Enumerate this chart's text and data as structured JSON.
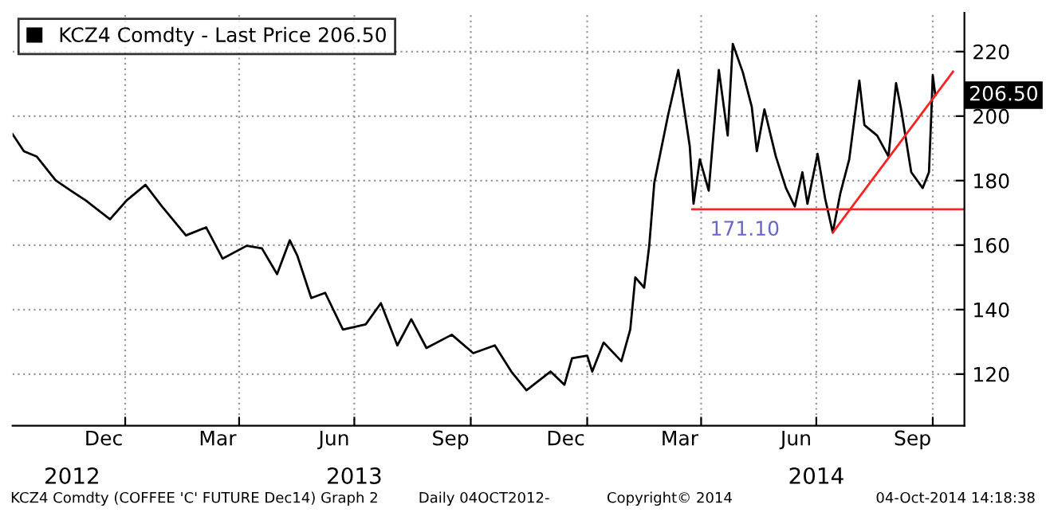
{
  "chart_data": {
    "type": "line",
    "series": [
      {
        "name": "KCZ4 Comdty - Last Price 206.50",
        "color": "#000000",
        "x": [
          "2012-10-04",
          "2012-10-13",
          "2012-10-23",
          "2012-11-07",
          "2012-11-19",
          "2012-12-01",
          "2012-12-20",
          "2013-01-02",
          "2013-01-17",
          "2013-01-30",
          "2013-02-18",
          "2013-03-06",
          "2013-03-19",
          "2013-04-07",
          "2013-04-19",
          "2013-05-01",
          "2013-05-11",
          "2013-05-17",
          "2013-05-28",
          "2013-06-08",
          "2013-06-22",
          "2013-07-10",
          "2013-07-22",
          "2013-08-04",
          "2013-08-15",
          "2013-08-27",
          "2013-09-16",
          "2013-10-03",
          "2013-10-20",
          "2013-11-02",
          "2013-11-14",
          "2013-12-03",
          "2013-12-14",
          "2013-12-20",
          "2014-01-01",
          "2014-01-05",
          "2014-01-14",
          "2014-01-28",
          "2014-02-04",
          "2014-02-08",
          "2014-02-15",
          "2014-02-19",
          "2014-02-23",
          "2014-03-06",
          "2014-03-14",
          "2014-03-23",
          "2014-03-26",
          "2014-03-31",
          "2014-04-07",
          "2014-04-15",
          "2014-04-22",
          "2014-04-26",
          "2014-05-04",
          "2014-05-11",
          "2014-05-15",
          "2014-05-21",
          "2014-05-30",
          "2014-06-07",
          "2014-06-14",
          "2014-06-20",
          "2014-06-24",
          "2014-07-02",
          "2014-07-08",
          "2014-07-14",
          "2014-07-20",
          "2014-07-27",
          "2014-08-04",
          "2014-08-08",
          "2014-08-18",
          "2014-08-27",
          "2014-09-02",
          "2014-09-06",
          "2014-09-14",
          "2014-09-23",
          "2014-09-28",
          "2014-09-30",
          "2014-10-01",
          "2014-10-03"
        ],
        "values": [
          194.4,
          189.1,
          187.5,
          180.1,
          176.9,
          173.8,
          168,
          173.8,
          178.7,
          172,
          163,
          165.5,
          155.8,
          159.8,
          159,
          151,
          161.5,
          156.7,
          143.6,
          145.2,
          133.8,
          135.4,
          142,
          128.9,
          137,
          128.1,
          132.2,
          126.5,
          128.9,
          120.8,
          115,
          120.8,
          116.7,
          124.9,
          125.7,
          120.8,
          129.8,
          124,
          133.8,
          150,
          146.8,
          159.8,
          179.3,
          200.5,
          214.3,
          190.7,
          172.8,
          186.6,
          176.9,
          214.3,
          194,
          222.4,
          213.5,
          202.9,
          189.1,
          202.1,
          187.5,
          177.7,
          172,
          182.6,
          172.8,
          188.3,
          174.4,
          163.9,
          176.1,
          186.6,
          211,
          197.2,
          194,
          187.5,
          210.2,
          202.1,
          182.6,
          177.7,
          182.6,
          202.1,
          212.7,
          206.5
        ]
      },
      {
        "color": "#ff2020",
        "x": [
          "2014-03-25",
          "2014-10-26"
        ],
        "values": [
          171.1,
          171.1
        ]
      },
      {
        "color": "#ff2020",
        "x": [
          "2014-07-14",
          "2014-10-17"
        ],
        "values": [
          163.9,
          213.8
        ]
      }
    ],
    "xlim": [
      "2012-10-04",
      "2014-10-26"
    ],
    "xticks": [
      {
        "value": "2013-01-01",
        "label": null
      },
      {
        "value": "2013-04-01",
        "label": null
      },
      {
        "value": "2013-07-01",
        "label": null
      },
      {
        "value": "2013-10-01",
        "label": null
      },
      {
        "value": "2014-01-01",
        "label": null
      },
      {
        "value": "2014-04-01",
        "label": null
      },
      {
        "value": "2014-07-01",
        "label": null
      },
      {
        "value": "2014-10-01",
        "label": null
      },
      {
        "value": "2012-12-15",
        "label": "Dec"
      },
      {
        "value": "2013-03-15",
        "label": "Mar"
      },
      {
        "value": "2013-06-15",
        "label": "Jun"
      },
      {
        "value": "2013-09-15",
        "label": "Sep"
      },
      {
        "value": "2013-12-15",
        "label": "Dec"
      },
      {
        "value": "2014-03-15",
        "label": "Mar"
      },
      {
        "value": "2014-06-15",
        "label": "Jun"
      },
      {
        "value": "2014-09-15",
        "label": "Sep"
      }
    ],
    "x2lim": [
      "2012-10-04",
      "2014-10-26"
    ],
    "x2ticks": [
      {
        "value": "2012-11-20",
        "label": "2012"
      },
      {
        "value": "2013-07-01",
        "label": "2013"
      },
      {
        "value": "2014-07-01",
        "label": "2014"
      }
    ],
    "ylim": [
      104,
      232
    ],
    "yticks": [
      120,
      140,
      160,
      180,
      200,
      220
    ],
    "grid": true,
    "legend": "top left",
    "annotations": [
      "171.10",
      {
        "text": "206.50",
        "x": "2014-10-03",
        "y": 206.5
      },
      "KCZ4 Comdty (COFFEE 'C' FUTURE Dec14) Graph 2",
      "Daily 04OCT2012-",
      "Copyright© 2014",
      "04-Oct-2014 14:18:38"
    ]
  }
}
